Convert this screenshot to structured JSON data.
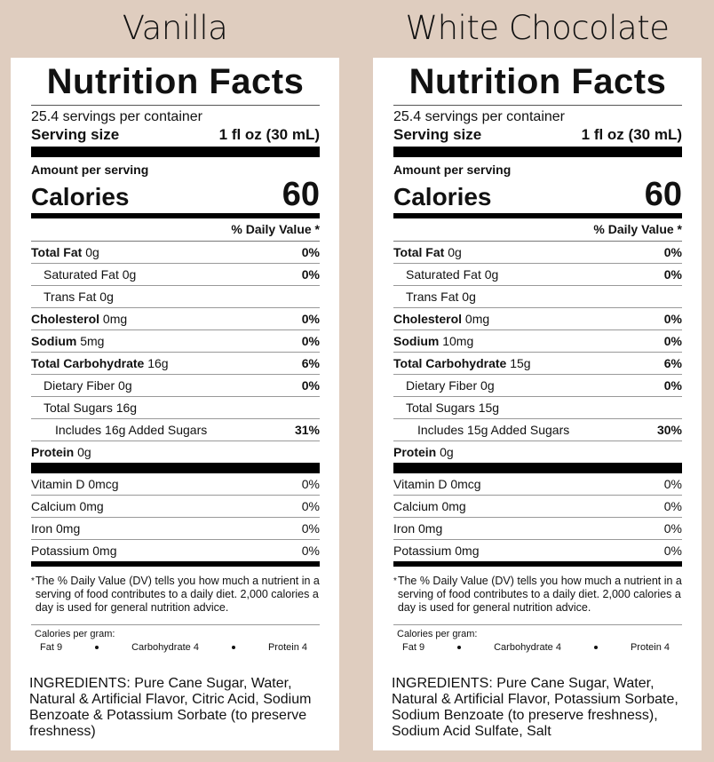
{
  "panels": [
    {
      "title": "Vanilla",
      "heading": "Nutrition Facts",
      "servings": "25.4 servings per container",
      "serving_size_label": "Serving size",
      "serving_size": "1 fl oz (30 mL)",
      "amount_per_serving": "Amount per serving",
      "calories_label": "Calories",
      "calories": 60,
      "dv_header": "% Daily Value *",
      "nutrients": [
        {
          "name": "Total Fat",
          "amount": "0g",
          "dv": "0%"
        },
        {
          "name": "Saturated Fat",
          "amount": "0g",
          "dv": "0%"
        },
        {
          "name": "Trans Fat",
          "amount": "0g"
        },
        {
          "name": "Cholesterol",
          "amount": "0mg",
          "dv": "0%"
        },
        {
          "name": "Sodium",
          "amount": "5mg",
          "dv": "0%"
        },
        {
          "name": "Total Carbohydrate",
          "amount": "16g",
          "dv": "6%"
        },
        {
          "name": "Dietary Fiber",
          "amount": "0g",
          "dv": "0%"
        },
        {
          "name": "Total Sugars",
          "amount": "16g"
        },
        {
          "name": "Includes 16g Added Sugars",
          "dv": "31%"
        },
        {
          "name": "Protein",
          "amount": "0g"
        }
      ],
      "vitamins": [
        {
          "name": "Vitamin D 0mcg",
          "dv": "0%"
        },
        {
          "name": "Calcium 0mg",
          "dv": "0%"
        },
        {
          "name": "Iron 0mg",
          "dv": "0%"
        },
        {
          "name": "Potassium 0mg",
          "dv": "0%"
        }
      ],
      "footnote_mark": "*",
      "footnote": "The % Daily Value (DV) tells you how much a nutrient in a serving of food contributes to a daily diet. 2,000 calories a day is used for general nutrition advice.",
      "calories_per_gram": "Calories per gram:",
      "per_gram": [
        "Fat 9",
        "Carbohydrate 4",
        "Protein 4"
      ],
      "ingredients": "INGREDIENTS: Pure Cane Sugar, Water, Natural & Artificial Flavor, Citric Acid, Sodium Benzoate & Potassium Sorbate (to preserve freshness)"
    },
    {
      "title": "White Chocolate",
      "heading": "Nutrition Facts",
      "servings": "25.4 servings per container",
      "serving_size_label": "Serving size",
      "serving_size": "1 fl oz (30 mL)",
      "amount_per_serving": "Amount per serving",
      "calories_label": "Calories",
      "calories": 60,
      "dv_header": "% Daily Value *",
      "nutrients": [
        {
          "name": "Total Fat",
          "amount": "0g",
          "dv": "0%"
        },
        {
          "name": "Saturated Fat",
          "amount": "0g",
          "dv": "0%"
        },
        {
          "name": "Trans Fat",
          "amount": "0g"
        },
        {
          "name": "Cholesterol",
          "amount": "0mg",
          "dv": "0%"
        },
        {
          "name": "Sodium",
          "amount": "10mg",
          "dv": "0%"
        },
        {
          "name": "Total Carbohydrate",
          "amount": "15g",
          "dv": "6%"
        },
        {
          "name": "Dietary Fiber",
          "amount": "0g",
          "dv": "0%"
        },
        {
          "name": "Total Sugars",
          "amount": "15g"
        },
        {
          "name": "Includes 15g Added Sugars",
          "dv": "30%"
        },
        {
          "name": "Protein",
          "amount": "0g"
        }
      ],
      "vitamins": [
        {
          "name": "Vitamin D 0mcg",
          "dv": "0%"
        },
        {
          "name": "Calcium 0mg",
          "dv": "0%"
        },
        {
          "name": "Iron 0mg",
          "dv": "0%"
        },
        {
          "name": "Potassium 0mg",
          "dv": "0%"
        }
      ],
      "footnote_mark": "*",
      "footnote": "The % Daily Value (DV) tells you how much a nutrient in a serving of food contributes to a daily diet. 2,000 calories a day is used for general nutrition advice.",
      "calories_per_gram": "Calories per gram:",
      "per_gram": [
        "Fat 9",
        "Carbohydrate 4",
        "Protein 4"
      ],
      "ingredients": "INGREDIENTS: Pure Cane Sugar, Water, Natural & Artificial Flavor, Potassium Sorbate, Sodium Benzoate (to preserve freshness), Sodium Acid Sulfate, Salt"
    }
  ]
}
